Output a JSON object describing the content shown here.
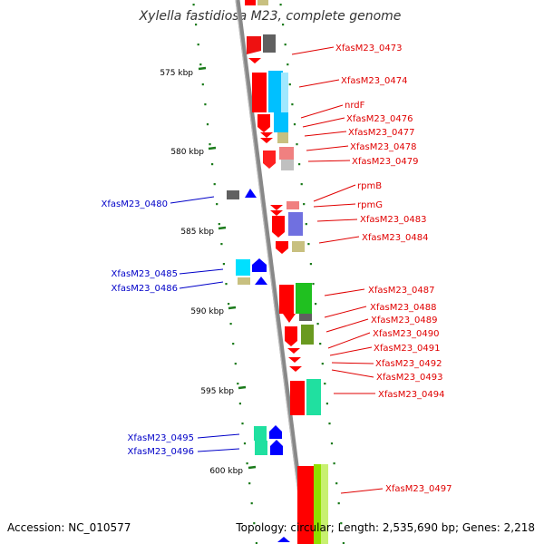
{
  "title": "Xylella fastidiosa M23, complete genome",
  "footer": {
    "accession": "Accession: NC_010577",
    "topology": "Topology: circular; Length: 2,535,690 bp; Genes: 2,218"
  },
  "ticks": [
    "575 kbp",
    "580 kbp",
    "585 kbp",
    "590 kbp",
    "595 kbp",
    "600 kbp"
  ],
  "genes_right": [
    "XfasM23_0473",
    "XfasM23_0474",
    "nrdF",
    "XfasM23_0476",
    "XfasM23_0477",
    "XfasM23_0478",
    "XfasM23_0479",
    "rpmB",
    "rpmG",
    "XfasM23_0483",
    "XfasM23_0484",
    "XfasM23_0487",
    "XfasM23_0488",
    "XfasM23_0489",
    "XfasM23_0490",
    "XfasM23_0491",
    "XfasM23_0492",
    "XfasM23_0493",
    "XfasM23_0494",
    "XfasM23_0497"
  ],
  "genes_left": [
    "XfasM23_0480",
    "XfasM23_0485",
    "XfasM23_0486",
    "XfasM23_0495",
    "XfasM23_0496"
  ],
  "colors": {
    "forward_label": "#e00000",
    "reverse_label": "#0000c8",
    "backbone": "#808080",
    "tick": "#1a7a1a",
    "forward_arrow": "#ff0000",
    "reverse_arrow": "#0000ff"
  }
}
